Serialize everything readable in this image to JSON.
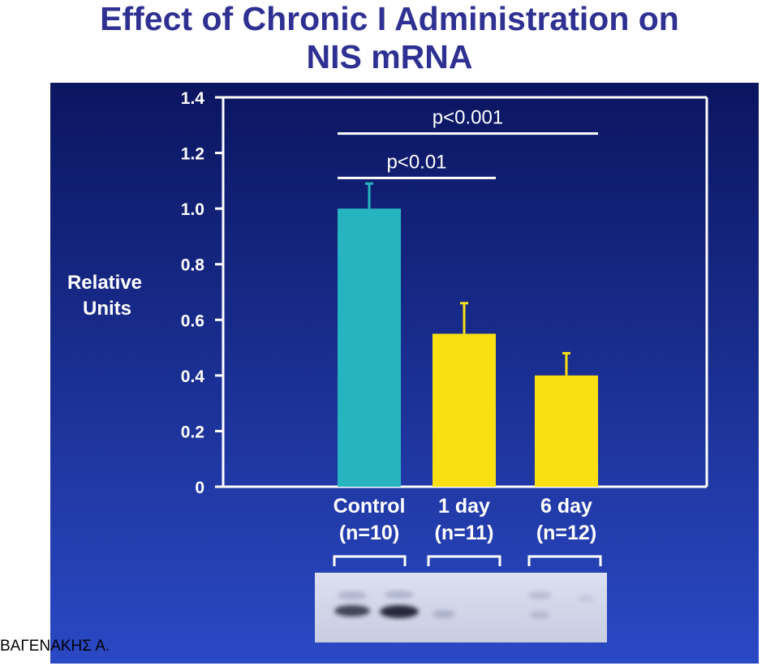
{
  "slide": {
    "title_line1": "Effect of Chronic I Administration on",
    "title_line2": "NIS mRNA",
    "author": "ΒΑΓΕΝΑΚΗΣ Α."
  },
  "chart_data": {
    "type": "bar",
    "ylabel_line1": "Relative",
    "ylabel_line2": "Units",
    "ylim": [
      0,
      1.4
    ],
    "yticks": [
      0,
      0.2,
      0.4,
      0.6,
      0.8,
      1.0,
      1.2,
      1.4
    ],
    "ytick_labels": [
      "0",
      "0.2",
      "0.4",
      "0.6",
      "0.8",
      "1.0",
      "1.2",
      "1.4"
    ],
    "categories": [
      {
        "line1": "Control",
        "line2": "(n=10)"
      },
      {
        "line1": "1 day",
        "line2": "(n=11)"
      },
      {
        "line1": "6 day",
        "line2": "(n=12)"
      }
    ],
    "values": [
      1.0,
      0.55,
      0.4
    ],
    "errors": [
      0.09,
      0.11,
      0.08
    ],
    "bar_colors": [
      "#26b5c0",
      "#f8e012",
      "#f8e012"
    ],
    "significance": [
      {
        "label": "p<0.01",
        "from": 0,
        "to": 1,
        "y": 1.11
      },
      {
        "label": "p<0.001",
        "from": 0,
        "to": 2,
        "y": 1.27
      }
    ],
    "grid": false
  },
  "colors": {
    "title": "#2e3192",
    "background_top": "#0b1560",
    "background_bottom": "#2a49c4",
    "axis": "#ffffff"
  }
}
